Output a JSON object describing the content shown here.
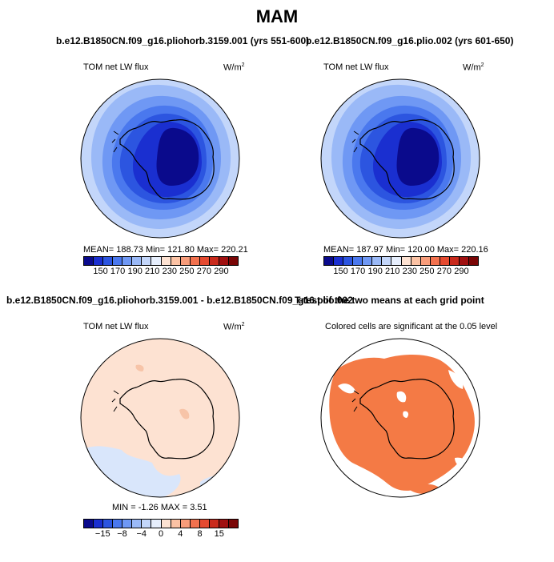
{
  "title": "MAM",
  "panels": {
    "top_left": {
      "title": "b.e12.B1850CN.f09_g16.pliohorb.3159.001 (yrs 551-600)",
      "var_label": "TOM net LW flux",
      "unit": "W/m",
      "unit_sup": "2",
      "stats": "MEAN= 188.73   Min= 121.80   Max= 220.21"
    },
    "top_right": {
      "title": "b.e12.B1850CN.f09_g16.plio.002 (yrs 601-650)",
      "var_label": "TOM net LW flux",
      "unit": "W/m",
      "unit_sup": "2",
      "stats": "MEAN= 187.97   Min= 120.00   Max= 220.16"
    },
    "bottom_left": {
      "title": "b.e12.B1850CN.f09_g16.pliohorb.3159.001 - b.e12.B1850CN.f09_g16.plio.002",
      "var_label": "TOM net LW flux",
      "unit": "W/m",
      "unit_sup": "2",
      "stats": "MIN =   -1.26  MAX =    3.51"
    },
    "bottom_right": {
      "title": "T-test of the two means at each grid point",
      "subtitle": "Colored cells are significant at the 0.05 level"
    }
  },
  "colorbars": {
    "absolute": {
      "colors": [
        "#0a0a8c",
        "#1a2fd0",
        "#2c55e0",
        "#4a78ee",
        "#6f98f4",
        "#9ab9f7",
        "#c3d6fa",
        "#e6eefc",
        "#fde2d2",
        "#fbc2a4",
        "#f79c7a",
        "#f2714e",
        "#e54a30",
        "#c92a1c",
        "#a01010",
        "#7a0606"
      ],
      "labels": [
        "150",
        "170",
        "190",
        "210",
        "230",
        "250",
        "270",
        "290"
      ]
    },
    "difference": {
      "colors": [
        "#0a0a8c",
        "#1a2fd0",
        "#2c55e0",
        "#4a78ee",
        "#6f98f4",
        "#9ab9f7",
        "#c3d6fa",
        "#e6eefc",
        "#fde2d2",
        "#fbc2a4",
        "#f79c7a",
        "#f2714e",
        "#e54a30",
        "#c92a1c",
        "#a01010",
        "#7a0606"
      ],
      "labels": [
        "−15",
        "−8",
        "−4",
        "0",
        "4",
        "8",
        "15"
      ]
    }
  },
  "map_colors": {
    "ring_outer": "#c3d6fa",
    "ring_2": "#9ab9f7",
    "ring_3": "#6f98f4",
    "ring_4": "#4a78ee",
    "ring_5": "#2c55e0",
    "plateau": "#1a2fd0",
    "core": "#0a0a8c",
    "diff_pos": "#fde2d2",
    "diff_neg": "#d9e6fb",
    "diff_strong": "#f7c4a8",
    "sig": "#f47a45"
  }
}
